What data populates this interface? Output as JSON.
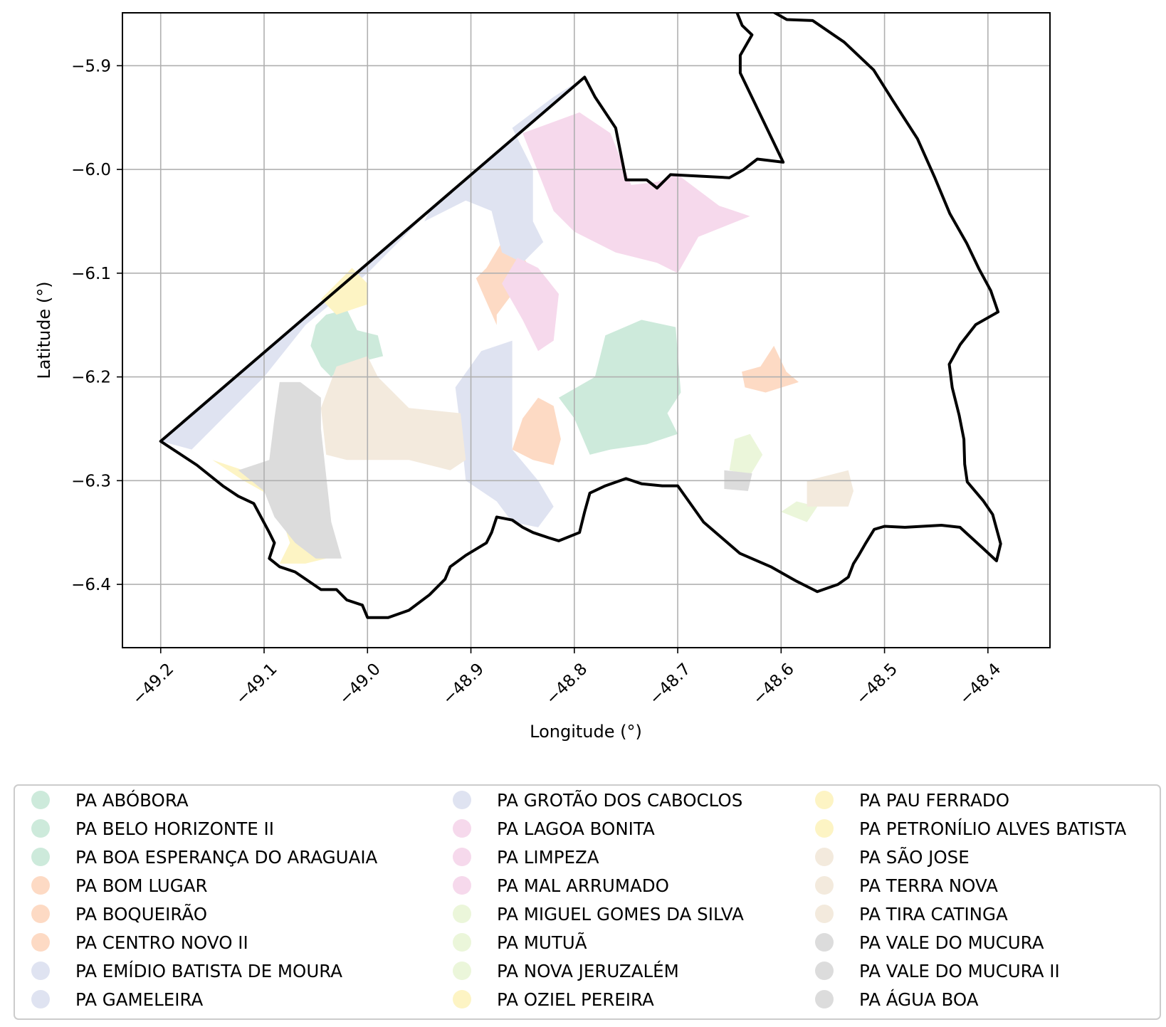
{
  "chart_data": {
    "type": "map",
    "xlabel": "Longitude (°)",
    "ylabel": "Latitude (°)",
    "xlim": [
      -49.237,
      -48.34
    ],
    "ylim": [
      -6.461,
      -5.849
    ],
    "xticks": [
      -49.2,
      -49.1,
      -49.0,
      -48.9,
      -48.8,
      -48.7,
      -48.6,
      -48.5,
      -48.4
    ],
    "yticks": [
      -5.9,
      -6.0,
      -6.1,
      -6.2,
      -6.3,
      -6.4
    ],
    "xtick_labels": [
      "−49.2",
      "−49.1",
      "−49.0",
      "−48.9",
      "−48.8",
      "−48.7",
      "−48.6",
      "−48.5",
      "−48.4"
    ],
    "ytick_labels": [
      "−5.9",
      "−6.0",
      "−6.1",
      "−6.2",
      "−6.3",
      "−6.4"
    ],
    "grid": true,
    "legend_placement": "below",
    "boundary": [
      [
        -49.2,
        -6.262
      ],
      [
        -48.79,
        -5.911
      ],
      [
        -48.78,
        -5.93
      ],
      [
        -48.76,
        -5.96
      ],
      [
        -48.75,
        -6.01
      ],
      [
        -48.73,
        -6.01
      ],
      [
        -48.72,
        -6.018
      ],
      [
        -48.707,
        -6.005
      ],
      [
        -48.65,
        -6.008
      ],
      [
        -48.636,
        -6.0
      ],
      [
        -48.623,
        -5.99
      ],
      [
        -48.598,
        -5.993
      ],
      [
        -48.6395,
        -5.907
      ],
      [
        -48.6395,
        -5.89
      ],
      [
        -48.6282,
        -5.8703
      ],
      [
        -48.6377,
        -5.8612
      ],
      [
        -48.6433,
        -5.8473
      ],
      [
        -48.6483,
        -5.833
      ],
      [
        -48.6368,
        -5.8243
      ],
      [
        -48.632,
        -5.8283
      ],
      [
        -48.621,
        -5.8406
      ],
      [
        -48.5945,
        -5.8555
      ],
      [
        -48.5695,
        -5.8565
      ],
      [
        -48.539,
        -5.8773
      ],
      [
        -48.5105,
        -5.9041
      ],
      [
        -48.4918,
        -5.9338
      ],
      [
        -48.4681,
        -5.9705
      ],
      [
        -48.4516,
        -6.0074
      ],
      [
        -48.4368,
        -6.0427
      ],
      [
        -48.4205,
        -6.0712
      ],
      [
        -48.4085,
        -6.0961
      ],
      [
        -48.3973,
        -6.1168
      ],
      [
        -48.3902,
        -6.1374
      ],
      [
        -48.4118,
        -6.1496
      ],
      [
        -48.4268,
        -6.1688
      ],
      [
        -48.4374,
        -6.1878
      ],
      [
        -48.4345,
        -6.2103
      ],
      [
        -48.4278,
        -6.2371
      ],
      [
        -48.4232,
        -6.2601
      ],
      [
        -48.4225,
        -6.2841
      ],
      [
        -48.42,
        -6.3012
      ],
      [
        -48.4047,
        -6.3192
      ],
      [
        -48.3954,
        -6.3326
      ],
      [
        -48.3877,
        -6.3608
      ],
      [
        -48.3917,
        -6.3773
      ],
      [
        -48.405,
        -6.365
      ],
      [
        -48.427,
        -6.345
      ],
      [
        -48.445,
        -6.343
      ],
      [
        -48.48,
        -6.345
      ],
      [
        -48.5,
        -6.344
      ],
      [
        -48.51,
        -6.347
      ],
      [
        -48.518,
        -6.36
      ],
      [
        -48.525,
        -6.372
      ],
      [
        -48.53,
        -6.38
      ],
      [
        -48.535,
        -6.393
      ],
      [
        -48.545,
        -6.4
      ],
      [
        -48.565,
        -6.407
      ],
      [
        -48.585,
        -6.397
      ],
      [
        -48.61,
        -6.383
      ],
      [
        -48.64,
        -6.37
      ],
      [
        -48.675,
        -6.34
      ],
      [
        -48.7,
        -6.305
      ],
      [
        -48.715,
        -6.305
      ],
      [
        -48.735,
        -6.303
      ],
      [
        -48.75,
        -6.298
      ],
      [
        -48.77,
        -6.305
      ],
      [
        -48.785,
        -6.312
      ],
      [
        -48.79,
        -6.33
      ],
      [
        -48.795,
        -6.35
      ],
      [
        -48.815,
        -6.358
      ],
      [
        -48.825,
        -6.355
      ],
      [
        -48.84,
        -6.35
      ],
      [
        -48.85,
        -6.345
      ],
      [
        -48.86,
        -6.338
      ],
      [
        -48.875,
        -6.335
      ],
      [
        -48.88,
        -6.35
      ],
      [
        -48.885,
        -6.36
      ],
      [
        -48.905,
        -6.372
      ],
      [
        -48.92,
        -6.383
      ],
      [
        -48.925,
        -6.395
      ],
      [
        -48.94,
        -6.41
      ],
      [
        -48.96,
        -6.425
      ],
      [
        -48.98,
        -6.432
      ],
      [
        -49.0,
        -6.432
      ],
      [
        -49.005,
        -6.42
      ],
      [
        -49.02,
        -6.415
      ],
      [
        -49.03,
        -6.405
      ],
      [
        -49.045,
        -6.405
      ],
      [
        -49.07,
        -6.388
      ],
      [
        -49.085,
        -6.383
      ],
      [
        -49.095,
        -6.375
      ],
      [
        -49.09,
        -6.36
      ],
      [
        -49.095,
        -6.35
      ],
      [
        -49.11,
        -6.322
      ],
      [
        -49.125,
        -6.315
      ],
      [
        -49.14,
        -6.305
      ],
      [
        -49.165,
        -6.285
      ],
      [
        -49.2,
        -6.262
      ]
    ],
    "areas": [
      {
        "group": 0,
        "polygon": [
          [
            -49.04,
            -6.14
          ],
          [
            -49.02,
            -6.135
          ],
          [
            -49.01,
            -6.155
          ],
          [
            -48.99,
            -6.16
          ],
          [
            -48.985,
            -6.18
          ],
          [
            -49.005,
            -6.185
          ],
          [
            -49.025,
            -6.19
          ],
          [
            -49.035,
            -6.2
          ],
          [
            -49.045,
            -6.19
          ],
          [
            -49.055,
            -6.17
          ],
          [
            -49.05,
            -6.15
          ]
        ]
      },
      {
        "group": 0,
        "polygon": [
          [
            -48.735,
            -6.145
          ],
          [
            -48.702,
            -6.152
          ],
          [
            -48.697,
            -6.215
          ],
          [
            -48.71,
            -6.235
          ],
          [
            -48.7,
            -6.255
          ],
          [
            -48.73,
            -6.265
          ],
          [
            -48.765,
            -6.27
          ],
          [
            -48.785,
            -6.275
          ],
          [
            -48.8,
            -6.24
          ],
          [
            -48.815,
            -6.22
          ],
          [
            -48.78,
            -6.2
          ],
          [
            -48.77,
            -6.16
          ]
        ]
      },
      {
        "group": 1,
        "polygon": [
          [
            -48.895,
            -6.105
          ],
          [
            -48.885,
            -6.095
          ],
          [
            -48.87,
            -6.07
          ],
          [
            -48.855,
            -6.075
          ],
          [
            -48.84,
            -6.1
          ],
          [
            -48.86,
            -6.12
          ],
          [
            -48.875,
            -6.14
          ],
          [
            -48.875,
            -6.15
          ]
        ]
      },
      {
        "group": 1,
        "polygon": [
          [
            -48.835,
            -6.22
          ],
          [
            -48.82,
            -6.228
          ],
          [
            -48.813,
            -6.26
          ],
          [
            -48.82,
            -6.285
          ],
          [
            -48.84,
            -6.28
          ],
          [
            -48.86,
            -6.27
          ],
          [
            -48.85,
            -6.24
          ]
        ]
      },
      {
        "group": 1,
        "polygon": [
          [
            -48.638,
            -6.195
          ],
          [
            -48.62,
            -6.19
          ],
          [
            -48.607,
            -6.17
          ],
          [
            -48.595,
            -6.195
          ],
          [
            -48.583,
            -6.205
          ],
          [
            -48.615,
            -6.215
          ],
          [
            -48.635,
            -6.21
          ]
        ]
      },
      {
        "group": 2,
        "polygon": [
          [
            -49.2,
            -6.262
          ],
          [
            -48.79,
            -5.911
          ],
          [
            -48.82,
            -5.93
          ],
          [
            -48.86,
            -5.96
          ],
          [
            -48.84,
            -6.0
          ],
          [
            -48.84,
            -6.05
          ],
          [
            -48.83,
            -6.07
          ],
          [
            -48.85,
            -6.09
          ],
          [
            -48.87,
            -6.08
          ],
          [
            -48.88,
            -6.04
          ],
          [
            -48.905,
            -6.03
          ],
          [
            -48.945,
            -6.05
          ],
          [
            -48.94,
            -6.04
          ],
          [
            -49.0,
            -6.1
          ],
          [
            -49.06,
            -6.15
          ],
          [
            -49.1,
            -6.2
          ],
          [
            -49.14,
            -6.24
          ],
          [
            -49.17,
            -6.27
          ]
        ]
      },
      {
        "group": 2,
        "polygon": [
          [
            -48.86,
            -6.165
          ],
          [
            -48.89,
            -6.175
          ],
          [
            -48.915,
            -6.21
          ],
          [
            -48.91,
            -6.25
          ],
          [
            -48.905,
            -6.3
          ],
          [
            -48.875,
            -6.32
          ],
          [
            -48.86,
            -6.34
          ],
          [
            -48.835,
            -6.345
          ],
          [
            -48.82,
            -6.325
          ],
          [
            -48.835,
            -6.3
          ],
          [
            -48.86,
            -6.27
          ]
        ]
      },
      {
        "group": 3,
        "polygon": [
          [
            -48.85,
            -5.965
          ],
          [
            -48.795,
            -5.945
          ],
          [
            -48.765,
            -5.965
          ],
          [
            -48.745,
            -6.015
          ],
          [
            -48.72,
            -6.012
          ],
          [
            -48.7,
            -6.005
          ],
          [
            -48.66,
            -6.035
          ],
          [
            -48.63,
            -6.045
          ],
          [
            -48.68,
            -6.065
          ],
          [
            -48.7,
            -6.1
          ],
          [
            -48.72,
            -6.09
          ],
          [
            -48.76,
            -6.08
          ],
          [
            -48.8,
            -6.06
          ],
          [
            -48.82,
            -6.04
          ]
        ]
      },
      {
        "group": 3,
        "polygon": [
          [
            -48.87,
            -6.11
          ],
          [
            -48.85,
            -6.145
          ],
          [
            -48.835,
            -6.175
          ],
          [
            -48.82,
            -6.165
          ],
          [
            -48.815,
            -6.12
          ],
          [
            -48.835,
            -6.095
          ],
          [
            -48.855,
            -6.085
          ]
        ]
      },
      {
        "group": 4,
        "polygon": [
          [
            -48.645,
            -6.26
          ],
          [
            -48.63,
            -6.255
          ],
          [
            -48.618,
            -6.275
          ],
          [
            -48.63,
            -6.295
          ],
          [
            -48.65,
            -6.29
          ]
        ]
      },
      {
        "group": 4,
        "polygon": [
          [
            -48.585,
            -6.32
          ],
          [
            -48.565,
            -6.325
          ],
          [
            -48.575,
            -6.34
          ],
          [
            -48.6,
            -6.33
          ]
        ]
      },
      {
        "group": 5,
        "polygon": [
          [
            -49.015,
            -6.095
          ],
          [
            -49.0,
            -6.11
          ],
          [
            -49.0,
            -6.13
          ],
          [
            -49.03,
            -6.14
          ],
          [
            -49.045,
            -6.125
          ]
        ]
      },
      {
        "group": 5,
        "polygon": [
          [
            -49.15,
            -6.28
          ],
          [
            -49.12,
            -6.29
          ],
          [
            -49.1,
            -6.31
          ],
          [
            -49.085,
            -6.33
          ],
          [
            -49.075,
            -6.36
          ],
          [
            -49.085,
            -6.38
          ],
          [
            -49.06,
            -6.38
          ],
          [
            -49.04,
            -6.375
          ],
          [
            -49.03,
            -6.36
          ],
          [
            -49.05,
            -6.345
          ],
          [
            -49.075,
            -6.325
          ],
          [
            -49.12,
            -6.3
          ]
        ]
      },
      {
        "group": 6,
        "polygon": [
          [
            -49.03,
            -6.19
          ],
          [
            -49.0,
            -6.18
          ],
          [
            -48.99,
            -6.2
          ],
          [
            -48.96,
            -6.23
          ],
          [
            -48.91,
            -6.235
          ],
          [
            -48.905,
            -6.28
          ],
          [
            -48.92,
            -6.29
          ],
          [
            -48.96,
            -6.28
          ],
          [
            -49.02,
            -6.28
          ],
          [
            -49.04,
            -6.275
          ],
          [
            -49.045,
            -6.23
          ]
        ]
      },
      {
        "group": 6,
        "polygon": [
          [
            -48.555,
            -6.295
          ],
          [
            -48.575,
            -6.3
          ],
          [
            -48.575,
            -6.325
          ],
          [
            -48.535,
            -6.325
          ],
          [
            -48.53,
            -6.31
          ],
          [
            -48.535,
            -6.29
          ]
        ]
      },
      {
        "group": 7,
        "polygon": [
          [
            -49.085,
            -6.205
          ],
          [
            -49.065,
            -6.205
          ],
          [
            -49.045,
            -6.22
          ],
          [
            -49.045,
            -6.25
          ],
          [
            -49.035,
            -6.34
          ],
          [
            -49.025,
            -6.375
          ],
          [
            -49.05,
            -6.375
          ],
          [
            -49.07,
            -6.36
          ],
          [
            -49.09,
            -6.335
          ],
          [
            -49.1,
            -6.31
          ],
          [
            -49.125,
            -6.29
          ],
          [
            -49.095,
            -6.28
          ],
          [
            -49.09,
            -6.24
          ]
        ]
      },
      {
        "group": 7,
        "polygon": [
          [
            -48.655,
            -6.29
          ],
          [
            -48.628,
            -6.293
          ],
          [
            -48.632,
            -6.31
          ],
          [
            -48.655,
            -6.308
          ]
        ]
      }
    ],
    "legend": [
      {
        "label": "PA ABÓBORA",
        "group": 0
      },
      {
        "label": "PA BELO HORIZONTE II",
        "group": 0
      },
      {
        "label": "PA BOA ESPERANÇA DO ARAGUAIA",
        "group": 0
      },
      {
        "label": "PA BOM LUGAR",
        "group": 1
      },
      {
        "label": "PA BOQUEIRÃO",
        "group": 1
      },
      {
        "label": "PA CENTRO NOVO II",
        "group": 1
      },
      {
        "label": "PA EMÍDIO BATISTA DE MOURA",
        "group": 2
      },
      {
        "label": "PA GAMELEIRA",
        "group": 2
      },
      {
        "label": "PA GROTÃO DOS CABOCLOS",
        "group": 2
      },
      {
        "label": "PA LAGOA BONITA",
        "group": 3
      },
      {
        "label": "PA LIMPEZA",
        "group": 3
      },
      {
        "label": "PA MAL ARRUMADO",
        "group": 3
      },
      {
        "label": "PA MIGUEL GOMES DA SILVA",
        "group": 4
      },
      {
        "label": "PA MUTUÃ",
        "group": 4
      },
      {
        "label": "PA NOVA JERUZALÉM",
        "group": 4
      },
      {
        "label": "PA OZIEL PEREIRA",
        "group": 5
      },
      {
        "label": "PA PAU FERRADO",
        "group": 5
      },
      {
        "label": "PA PETRONÍLIO ALVES BATISTA",
        "group": 5
      },
      {
        "label": "PA SÃO JOSE",
        "group": 6
      },
      {
        "label": "PA TERRA NOVA",
        "group": 6
      },
      {
        "label": "PA TIRA CATINGA",
        "group": 6
      },
      {
        "label": "PA VALE DO MUCURA",
        "group": 7
      },
      {
        "label": "PA VALE DO MUCURA II",
        "group": 7
      },
      {
        "label": "PA ÁGUA BOA",
        "group": 7
      }
    ],
    "group_colors": [
      "#cdeadb",
      "#fddac4",
      "#dfe3f1",
      "#f6d9ec",
      "#ebf6da",
      "#fdf4c4",
      "#f3eadd",
      "#dcdcdc"
    ],
    "boundary_color": "#000000"
  }
}
